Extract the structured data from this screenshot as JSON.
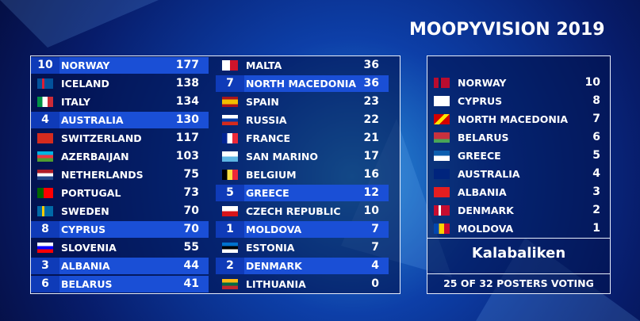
{
  "header": {
    "title": "MOOPYVISION 2019"
  },
  "scoreboard": {
    "columns": [
      {
        "rows": [
          {
            "points": 10,
            "country": "NORWAY",
            "total": 177
          },
          {
            "country": "ICELAND",
            "total": 138
          },
          {
            "country": "ITALY",
            "total": 134
          },
          {
            "points": 4,
            "country": "AUSTRALIA",
            "total": 130
          },
          {
            "country": "SWITZERLAND",
            "total": 117
          },
          {
            "country": "AZERBAIJAN",
            "total": 103
          },
          {
            "country": "NETHERLANDS",
            "total": 75
          },
          {
            "country": "PORTUGAL",
            "total": 73
          },
          {
            "country": "SWEDEN",
            "total": 70
          },
          {
            "points": 8,
            "country": "CYPRUS",
            "total": 70
          },
          {
            "country": "SLOVENIA",
            "total": 55
          },
          {
            "points": 3,
            "country": "ALBANIA",
            "total": 44
          },
          {
            "points": 6,
            "country": "BELARUS",
            "total": 41
          }
        ]
      },
      {
        "rows": [
          {
            "country": "MALTA",
            "total": 36
          },
          {
            "points": 7,
            "country": "NORTH MACEDONIA",
            "total": 36
          },
          {
            "country": "SPAIN",
            "total": 23
          },
          {
            "country": "RUSSIA",
            "total": 22
          },
          {
            "country": "FRANCE",
            "total": 21
          },
          {
            "country": "SAN MARINO",
            "total": 17
          },
          {
            "country": "BELGIUM",
            "total": 16
          },
          {
            "points": 5,
            "country": "GREECE",
            "total": 12
          },
          {
            "country": "CZECH REPUBLIC",
            "total": 10
          },
          {
            "points": 1,
            "country": "MOLDOVA",
            "total": 7
          },
          {
            "country": "ESTONIA",
            "total": 7
          },
          {
            "points": 2,
            "country": "DENMARK",
            "total": 4
          },
          {
            "country": "LITHUANIA",
            "total": 0
          }
        ]
      }
    ]
  },
  "voting": {
    "votes": [
      {
        "country": "NORWAY",
        "points": 10
      },
      {
        "country": "CYPRUS",
        "points": 8
      },
      {
        "country": "NORTH MACEDONIA",
        "points": 7
      },
      {
        "country": "BELARUS",
        "points": 6
      },
      {
        "country": "GREECE",
        "points": 5
      },
      {
        "country": "AUSTRALIA",
        "points": 4
      },
      {
        "country": "ALBANIA",
        "points": 3
      },
      {
        "country": "DENMARK",
        "points": 2
      },
      {
        "country": "MOLDOVA",
        "points": 1
      }
    ],
    "voter": "Kalabaliken",
    "footer": "25 OF 32 POSTERS VOTING"
  }
}
